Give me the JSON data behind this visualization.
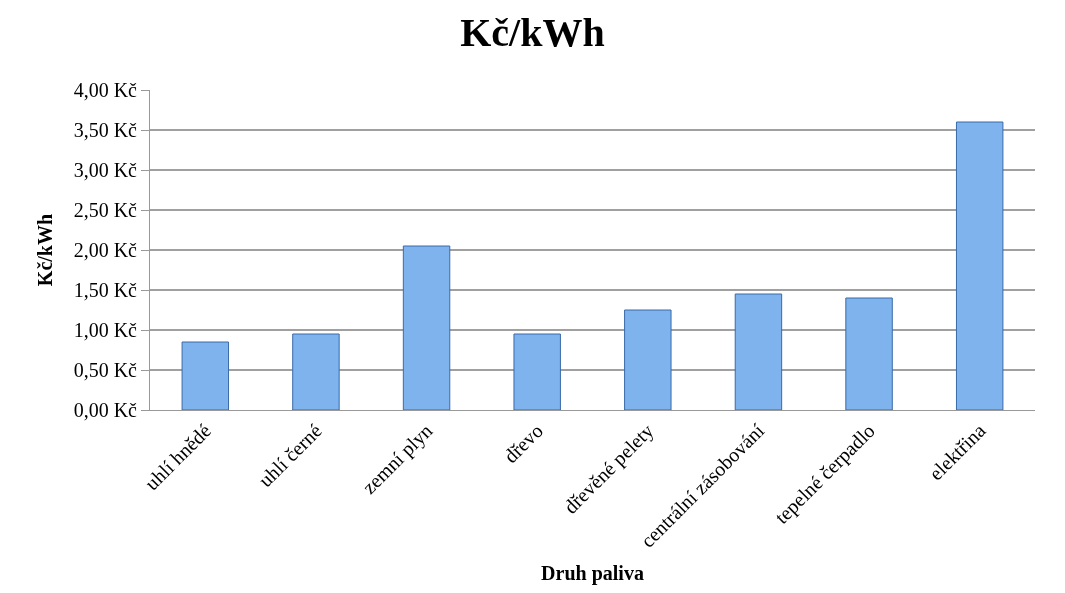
{
  "chart_data": {
    "type": "bar",
    "title": "Kč/kWh",
    "xlabel": "Druh paliva",
    "ylabel": "Kč/kWh",
    "categories": [
      "uhlí hnědé",
      "uhlí černé",
      "zemní plyn",
      "dřevo",
      "dřevěné pelety",
      "centrální zásobování",
      "tepelné čerpadlo",
      "elektřina"
    ],
    "values": [
      0.85,
      0.95,
      2.05,
      0.95,
      1.25,
      1.45,
      1.4,
      3.6
    ],
    "color": "#7fb3ee",
    "ylim": [
      0,
      4
    ],
    "yticks": [
      {
        "value": 0,
        "label": "0,00 Kč"
      },
      {
        "value": 0.5,
        "label": "0,50 Kč"
      },
      {
        "value": 1,
        "label": "1,00 Kč"
      },
      {
        "value": 1.5,
        "label": "1,50 Kč"
      },
      {
        "value": 2,
        "label": "2,00 Kč"
      },
      {
        "value": 2.5,
        "label": "2,50 Kč"
      },
      {
        "value": 3,
        "label": "3,00 Kč"
      },
      {
        "value": 3.5,
        "label": "3,50 Kč"
      },
      {
        "value": 4,
        "label": "4,00 Kč"
      }
    ],
    "grid": "y"
  }
}
